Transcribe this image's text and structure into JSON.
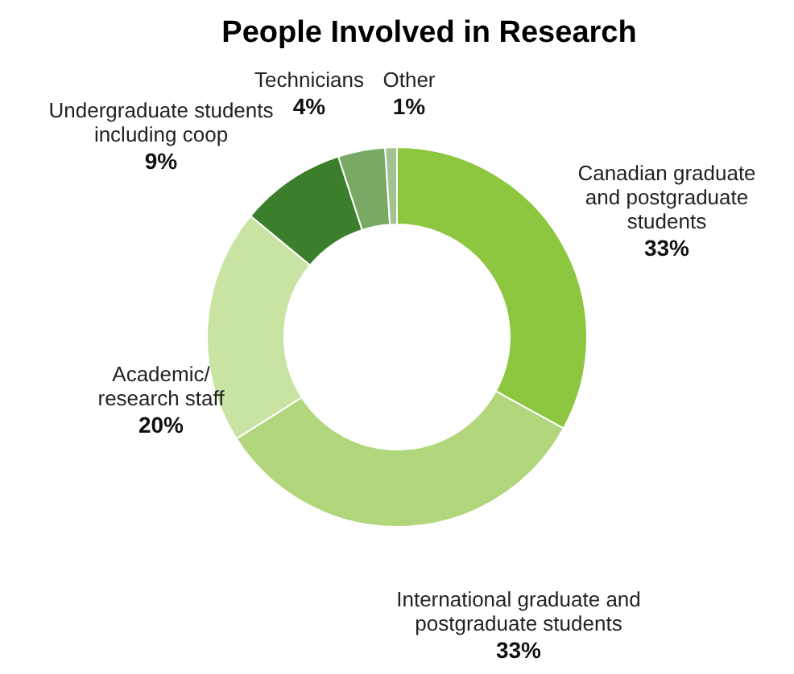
{
  "chart_data": {
    "type": "donut",
    "title": "People Involved in Research",
    "categories": [
      "Canadian graduate\nand postgraduate\nstudents",
      "International graduate and\npostgraduate students",
      "Academic/\nresearch staff",
      "Undergraduate students\nincluding coop",
      "Technicians",
      "Other"
    ],
    "values": [
      33,
      33,
      20,
      9,
      4,
      1
    ],
    "colors": [
      "#8dc63f",
      "#b2d67b",
      "#c8e3a2",
      "#3b7e2c",
      "#7aa865",
      "#a3c291"
    ],
    "value_labels": [
      "33%",
      "33%",
      "20%",
      "9%",
      "4%",
      "1%"
    ],
    "legend": false
  }
}
